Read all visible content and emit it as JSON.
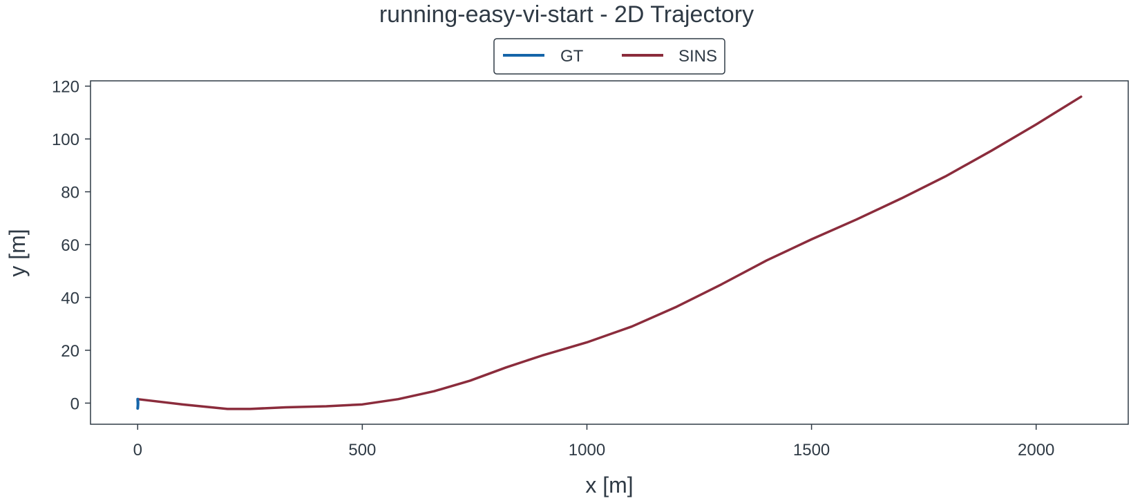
{
  "chart_data": {
    "type": "line",
    "title": "running-easy-vi-start - 2D Trajectory",
    "xlabel": "x [m]",
    "ylabel": "y [m]",
    "xlim": [
      -105,
      2205
    ],
    "ylim": [
      -8,
      122
    ],
    "xticks": [
      0,
      500,
      1000,
      1500,
      2000
    ],
    "yticks": [
      0,
      20,
      40,
      60,
      80,
      100,
      120
    ],
    "grid": false,
    "legend_position": "top-center",
    "series": [
      {
        "name": "GT",
        "color": "#1565a9",
        "x": [
          0,
          0.5,
          0.8,
          0.6,
          0.2,
          0,
          0.3,
          0.6,
          0.4,
          0
        ],
        "y": [
          1.5,
          0.8,
          0,
          -0.8,
          -1.6,
          -2.0,
          -1.5,
          -0.5,
          0.5,
          1.2
        ]
      },
      {
        "name": "SINS",
        "color": "#8b2c3c",
        "x": [
          0,
          100,
          200,
          250,
          330,
          420,
          500,
          580,
          660,
          740,
          820,
          900,
          1000,
          1100,
          1200,
          1300,
          1400,
          1500,
          1600,
          1700,
          1800,
          1900,
          2000,
          2100
        ],
        "y": [
          1.5,
          -0.5,
          -2.2,
          -2.2,
          -1.6,
          -1.2,
          -0.5,
          1.5,
          4.5,
          8.5,
          13.5,
          18,
          23,
          29,
          36.5,
          45,
          54,
          62,
          69.5,
          77.5,
          86,
          95.5,
          105.5,
          116
        ]
      }
    ]
  }
}
